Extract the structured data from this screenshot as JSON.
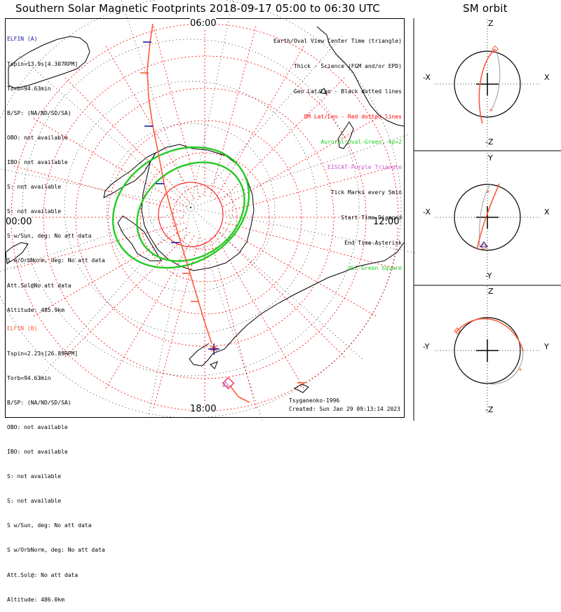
{
  "title": "Southern Solar Magnetic Footprints 2018-09-17 05:00 to 06:30 UTC",
  "sm_title": "SM orbit",
  "polar_labels": {
    "top": "06:00",
    "left": "00:00",
    "right": "12:00",
    "bottom": "18:00"
  },
  "probe_a": {
    "name": "ELFIN (A)",
    "color": "#1a1aa6",
    "lines": [
      "Tspin=13.9s[4.307RPM]",
      "Torb=94.63min",
      "B/SP: (NA/ND/SD/SA)",
      "OBO: not available",
      "IBO: not available",
      "S: not available",
      "S: not available",
      "S w/Sun, deg: No att data",
      "S w/OrbNorm, deg: No att data",
      "Att.Sol@No att data",
      "Altitude: 485.9km"
    ]
  },
  "probe_b": {
    "name": "ELFIN (B)",
    "color": "#ff5a3c",
    "lines": [
      "Tspin=2.23s[26.89RPM]",
      "Torb=94.63min",
      "B/SP: (NA/ND/SD/SA)",
      "OBO: not available",
      "IBO: not available",
      "S: not available",
      "S: not available",
      "S w/Sun, deg: No att data",
      "S w/OrbNorm, deg: No att data",
      "Att.Sol@: No att data",
      "Altitude: 486.0km"
    ]
  },
  "legend": [
    {
      "text": "Earth/Oval View Center Time (triangle)",
      "color": "#000000"
    },
    {
      "text": "Thick - Science (FGM and/or EPD)",
      "color": "#000000"
    },
    {
      "text": "Geo Lat/Lon - Black dotted lines",
      "color": "#000000"
    },
    {
      "text": "SM Lat/Lon - Red dotted lines",
      "color": "#ff0000"
    },
    {
      "text": "Auroral Oval-Green, kp=2",
      "color": "#22cc22"
    },
    {
      "text": "EISCAT-Purple Triangle",
      "color": "#cc55cc"
    },
    {
      "text": "Tick Marks every 5min",
      "color": "#000000"
    },
    {
      "text": "Start Time-Diamond",
      "color": "#000000"
    },
    {
      "text": "End Time-Asterisk",
      "color": "#000000"
    },
    {
      "text": "VLF-Green Square",
      "color": "#22cc22"
    }
  ],
  "credits": [
    "Tsyganenko-1996",
    "Created: Sun Jan 29 09:13:14 2023"
  ],
  "sm_panels": [
    {
      "top": "Z",
      "bottom": "-Z",
      "left": "-X",
      "right": "X"
    },
    {
      "top": "Y",
      "bottom": "-Y",
      "left": "-X",
      "right": "X"
    },
    {
      "top": "Z",
      "bottom": "-Z",
      "left": "-Y",
      "right": "Y"
    }
  ],
  "colors": {
    "sm_grid": "#ff0000",
    "geo_grid": "#000000",
    "auroral_oval": "#22cc22",
    "trace_b": "#ff5a3c",
    "trace_a": "#1a1aa6",
    "coast": "#000000",
    "eiscat": "#cc55cc"
  },
  "chart_data": {
    "type": "polar map",
    "projection": "southern hemisphere, magnetic local time",
    "mlt_labels": [
      "06:00",
      "00:00",
      "12:00",
      "18:00"
    ],
    "series": [
      {
        "name": "ELFIN (A)",
        "color": "#1a1aa6"
      },
      {
        "name": "ELFIN (B)",
        "color": "#ff5a3c"
      }
    ],
    "tick_interval_min": 5,
    "kp": 2
  }
}
